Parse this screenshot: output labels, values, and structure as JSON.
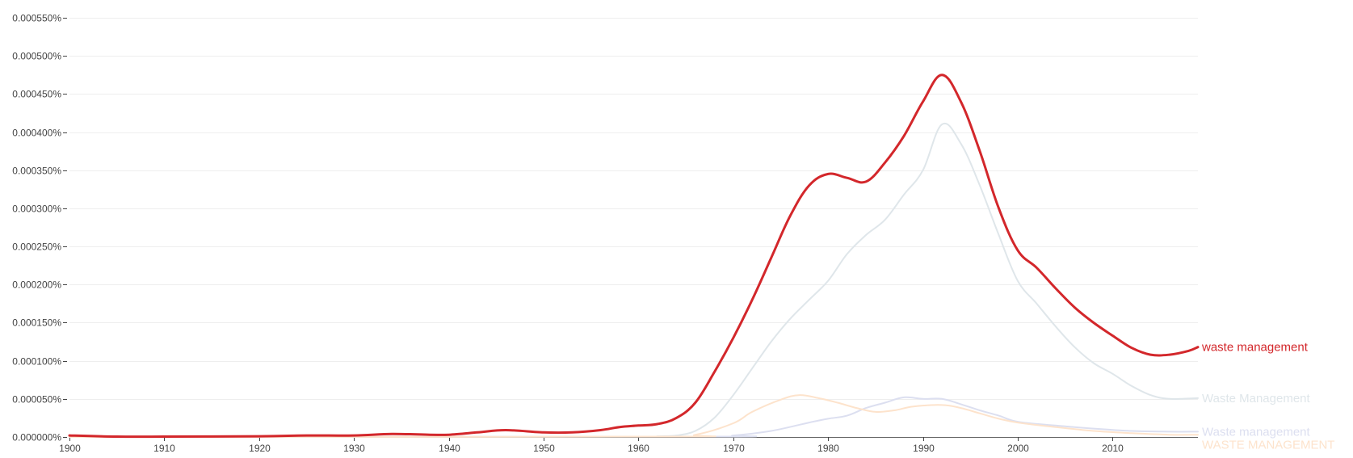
{
  "chart_data": {
    "type": "line",
    "title": "",
    "xlabel": "",
    "ylabel": "",
    "xlim": [
      1900,
      2019
    ],
    "ylim": [
      0,
      0.00055
    ],
    "grid": true,
    "legend": "right-end labels",
    "y_ticks": [
      0,
      5e-05,
      0.0001,
      0.00015,
      0.0002,
      0.00025,
      0.0003,
      0.00035,
      0.0004,
      0.00045,
      0.0005,
      0.00055
    ],
    "y_tick_labels": [
      "0.000000%",
      "0.000050%",
      "0.000100%",
      "0.000150%",
      "0.000200%",
      "0.000250%",
      "0.000300%",
      "0.000350%",
      "0.000400%",
      "0.000450%",
      "0.000500%",
      "0.000550%"
    ],
    "x_ticks": [
      1900,
      1910,
      1920,
      1930,
      1940,
      1950,
      1960,
      1970,
      1980,
      1990,
      2000,
      2010
    ],
    "x_tick_labels": [
      "1900",
      "1910",
      "1920",
      "1930",
      "1940",
      "1950",
      "1960",
      "1970",
      "1980",
      "1990",
      "2000",
      "2010"
    ],
    "series": [
      {
        "name": "Waste Management",
        "color": "#dfe6ea",
        "points": [
          [
            1900,
            0
          ],
          [
            1960,
            5e-07
          ],
          [
            1962,
            1e-06
          ],
          [
            1964,
            2e-06
          ],
          [
            1966,
            8e-06
          ],
          [
            1968,
            2.5e-05
          ],
          [
            1970,
            5.5e-05
          ],
          [
            1972,
            9e-05
          ],
          [
            1974,
            0.000125
          ],
          [
            1976,
            0.000155
          ],
          [
            1978,
            0.00018
          ],
          [
            1980,
            0.000205
          ],
          [
            1982,
            0.00024
          ],
          [
            1984,
            0.000265
          ],
          [
            1986,
            0.000285
          ],
          [
            1988,
            0.000318
          ],
          [
            1990,
            0.00035
          ],
          [
            1992,
            0.00041
          ],
          [
            1994,
            0.000385
          ],
          [
            1996,
            0.00033
          ],
          [
            1998,
            0.000265
          ],
          [
            2000,
            0.000205
          ],
          [
            2002,
            0.000175
          ],
          [
            2004,
            0.000145
          ],
          [
            2006,
            0.000118
          ],
          [
            2008,
            9.7e-05
          ],
          [
            2010,
            8.3e-05
          ],
          [
            2012,
            6.7e-05
          ],
          [
            2014,
            5.5e-05
          ],
          [
            2016,
            5e-05
          ],
          [
            2019,
            5.1e-05
          ]
        ]
      },
      {
        "name": "waste management",
        "color": "#d3272b",
        "points": [
          [
            1900,
            2e-06
          ],
          [
            1905,
            5e-07
          ],
          [
            1910,
            5e-07
          ],
          [
            1920,
            1e-06
          ],
          [
            1925,
            2e-06
          ],
          [
            1930,
            2e-06
          ],
          [
            1934,
            4e-06
          ],
          [
            1938,
            3e-06
          ],
          [
            1940,
            3e-06
          ],
          [
            1943,
            6e-06
          ],
          [
            1946,
            9e-06
          ],
          [
            1950,
            6e-06
          ],
          [
            1953,
            6e-06
          ],
          [
            1956,
            9e-06
          ],
          [
            1958,
            1.3e-05
          ],
          [
            1960,
            1.5e-05
          ],
          [
            1962,
            1.7e-05
          ],
          [
            1964,
            2.5e-05
          ],
          [
            1966,
            4.5e-05
          ],
          [
            1968,
            8.5e-05
          ],
          [
            1970,
            0.00013
          ],
          [
            1972,
            0.00018
          ],
          [
            1974,
            0.000235
          ],
          [
            1976,
            0.00029
          ],
          [
            1978,
            0.00033
          ],
          [
            1980,
            0.000345
          ],
          [
            1982,
            0.00034
          ],
          [
            1984,
            0.000335
          ],
          [
            1986,
            0.00036
          ],
          [
            1988,
            0.000395
          ],
          [
            1990,
            0.00044
          ],
          [
            1992,
            0.000475
          ],
          [
            1994,
            0.00044
          ],
          [
            1996,
            0.000375
          ],
          [
            1998,
            0.0003
          ],
          [
            2000,
            0.000245
          ],
          [
            2002,
            0.000222
          ],
          [
            2004,
            0.000195
          ],
          [
            2006,
            0.00017
          ],
          [
            2008,
            0.00015
          ],
          [
            2010,
            0.000133
          ],
          [
            2012,
            0.000117
          ],
          [
            2014,
            0.000108
          ],
          [
            2016,
            0.000108
          ],
          [
            2018,
            0.000113
          ],
          [
            2019,
            0.000118
          ]
        ]
      },
      {
        "name": "Waste management",
        "color": "#dcdff0",
        "points": [
          [
            1900,
            0
          ],
          [
            1966,
            5e-07
          ],
          [
            1970,
            2e-06
          ],
          [
            1974,
            8e-06
          ],
          [
            1978,
            1.9e-05
          ],
          [
            1980,
            2.4e-05
          ],
          [
            1982,
            2.8e-05
          ],
          [
            1984,
            3.8e-05
          ],
          [
            1986,
            4.5e-05
          ],
          [
            1988,
            5.2e-05
          ],
          [
            1990,
            5e-05
          ],
          [
            1992,
            5e-05
          ],
          [
            1994,
            4.3e-05
          ],
          [
            1996,
            3.5e-05
          ],
          [
            1998,
            2.8e-05
          ],
          [
            2000,
            2e-05
          ],
          [
            2004,
            1.5e-05
          ],
          [
            2008,
            1.1e-05
          ],
          [
            2012,
            8e-06
          ],
          [
            2016,
            7e-06
          ],
          [
            2019,
            7e-06
          ]
        ]
      },
      {
        "name": "WASTE MANAGEMENT",
        "color": "#fde3cc",
        "points": [
          [
            1900,
            0
          ],
          [
            1962,
            5e-07
          ],
          [
            1966,
            3e-06
          ],
          [
            1970,
            1.8e-05
          ],
          [
            1972,
            3.3e-05
          ],
          [
            1975,
            4.9e-05
          ],
          [
            1977,
            5.5e-05
          ],
          [
            1979,
            5.1e-05
          ],
          [
            1981,
            4.5e-05
          ],
          [
            1983,
            3.8e-05
          ],
          [
            1985,
            3.3e-05
          ],
          [
            1987,
            3.5e-05
          ],
          [
            1989,
            4e-05
          ],
          [
            1992,
            4.2e-05
          ],
          [
            1994,
            3.8e-05
          ],
          [
            1996,
            3.1e-05
          ],
          [
            1998,
            2.4e-05
          ],
          [
            2000,
            1.9e-05
          ],
          [
            2004,
            1.3e-05
          ],
          [
            2008,
            8e-06
          ],
          [
            2012,
            5e-06
          ],
          [
            2016,
            3e-06
          ],
          [
            2019,
            3e-06
          ]
        ]
      }
    ]
  }
}
